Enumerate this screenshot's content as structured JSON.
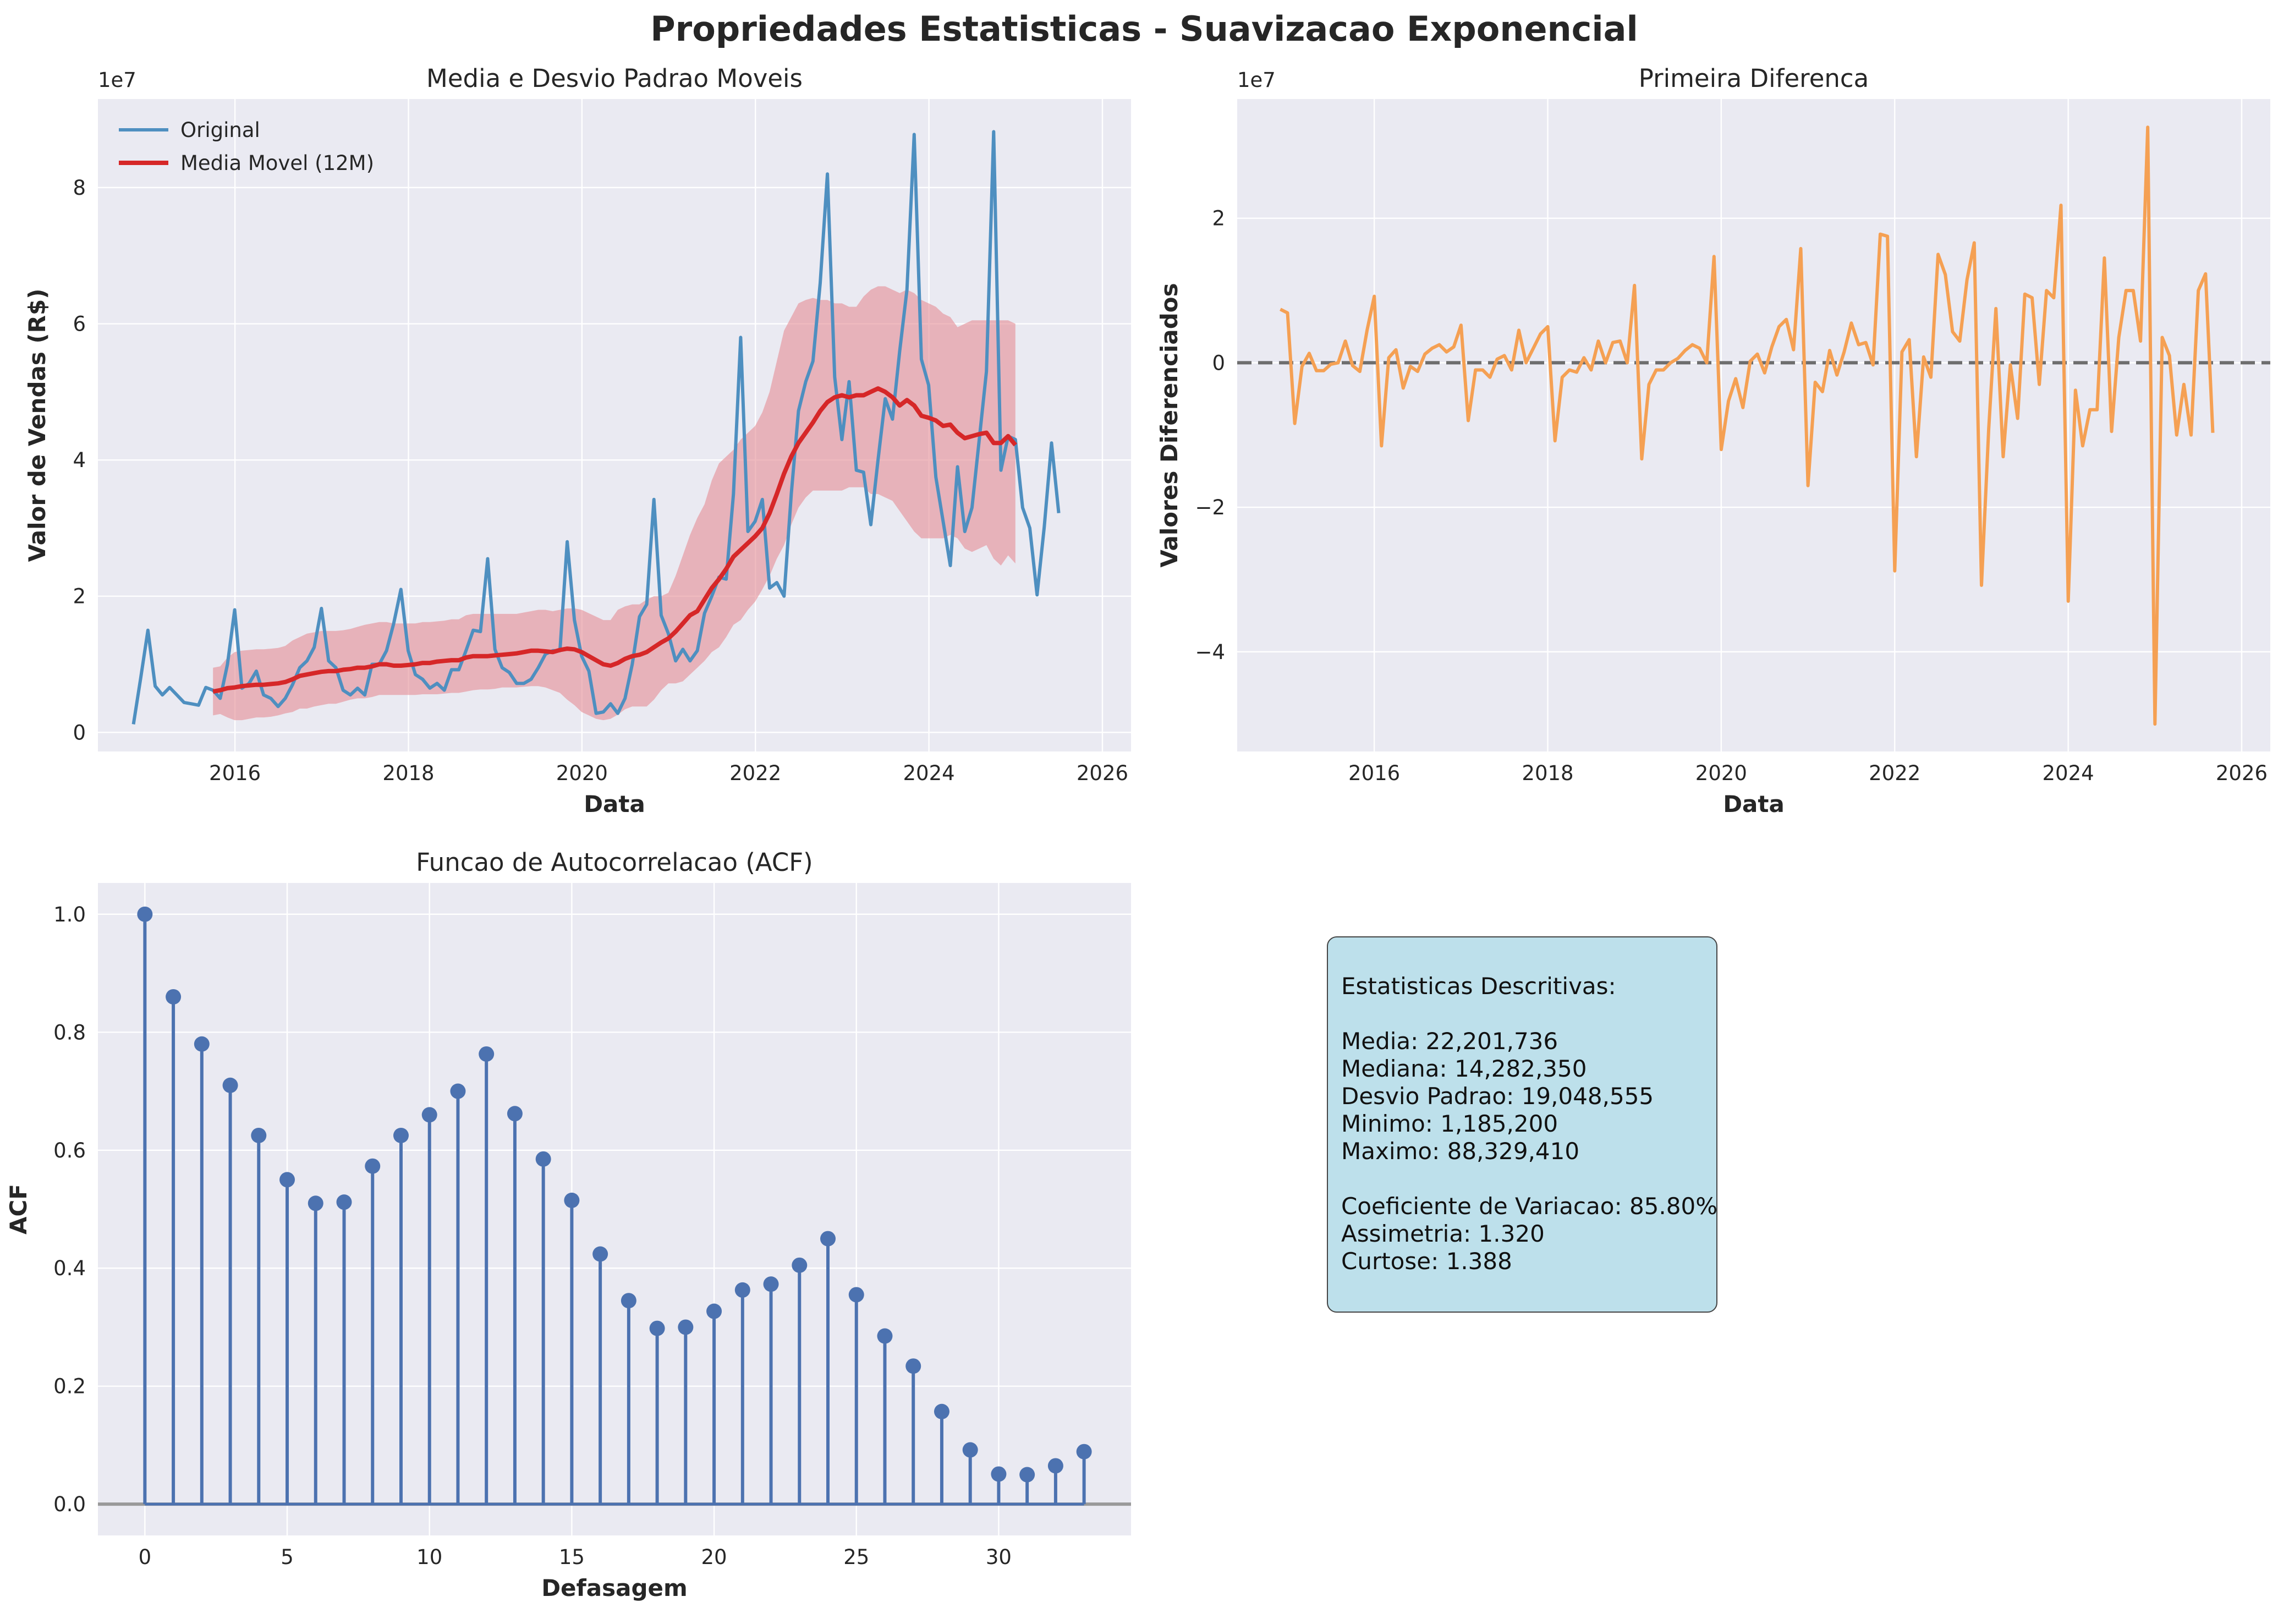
{
  "title": "Propriedades Estatisticas - Suavizacao Exponencial",
  "colors": {
    "axes_bg": "#eaeaf2",
    "original": "#4e8fc0",
    "rolling": "#d62728",
    "band": "#e48c94",
    "diff": "#f5a053",
    "acf": "#4c72b0",
    "zero": "#555555"
  },
  "chart_data": [
    {
      "type": "line",
      "title": "Media e Desvio Padrao Moveis",
      "xlabel": "Data",
      "ylabel": "Valor de Vendas (R$)",
      "y_offset_label": "1e7",
      "xlim": [
        2014.42,
        2026.33
      ],
      "ylim": [
        -0.28,
        9.3
      ],
      "xticks": [
        2016,
        2018,
        2020,
        2022,
        2024,
        2026
      ],
      "yticks": [
        0,
        2,
        4,
        6,
        8
      ],
      "x_start": 2014.83,
      "x_step_months": 1,
      "legend": {
        "position": "upper-left",
        "entries": [
          "Original",
          "Media Movel (12M)"
        ]
      },
      "series": [
        {
          "name": "Original",
          "values": [
            0.12,
            0.8,
            1.5,
            0.68,
            0.55,
            0.66,
            0.55,
            0.44,
            0.42,
            0.4,
            0.66,
            0.62,
            0.5,
            1.0,
            1.8,
            0.65,
            0.72,
            0.9,
            0.55,
            0.5,
            0.38,
            0.5,
            0.7,
            0.95,
            1.05,
            1.25,
            1.82,
            1.05,
            0.95,
            0.62,
            0.55,
            0.65,
            0.55,
            1.0,
            1.0,
            1.2,
            1.6,
            2.1,
            1.2,
            0.85,
            0.78,
            0.65,
            0.72,
            0.62,
            0.92,
            0.92,
            1.2,
            1.5,
            1.48,
            2.55,
            1.22,
            0.95,
            0.88,
            0.72,
            0.72,
            0.78,
            0.95,
            1.15,
            1.2,
            1.2,
            2.8,
            1.65,
            1.12,
            0.9,
            0.28,
            0.3,
            0.42,
            0.28,
            0.5,
            1.0,
            1.7,
            1.88,
            3.42,
            1.72,
            1.45,
            1.05,
            1.22,
            1.05,
            1.2,
            1.75,
            2.0,
            2.28,
            2.25,
            3.5,
            5.8,
            2.95,
            3.1,
            3.42,
            2.12,
            2.2,
            2.0,
            3.5,
            4.72,
            5.15,
            5.45,
            6.6,
            8.2,
            5.22,
            4.3,
            5.15,
            3.85,
            3.82,
            3.05,
            4.0,
            4.9,
            4.6,
            5.6,
            6.5,
            8.78,
            5.48,
            5.1,
            3.75,
            3.1,
            2.45,
            3.9,
            2.95,
            3.3,
            4.3,
            5.3,
            8.82,
            3.85,
            4.35,
            4.3,
            3.3,
            3.0,
            2.02,
            3.02,
            4.25,
            3.22
          ]
        },
        {
          "name": "Media Movel (12M)",
          "start_index": 11,
          "values": [
            0.6,
            0.62,
            0.65,
            0.66,
            0.68,
            0.69,
            0.7,
            0.7,
            0.71,
            0.72,
            0.74,
            0.78,
            0.83,
            0.85,
            0.87,
            0.89,
            0.9,
            0.9,
            0.92,
            0.93,
            0.95,
            0.95,
            0.97,
            1.0,
            1.0,
            0.98,
            0.98,
            0.99,
            1.0,
            1.02,
            1.02,
            1.04,
            1.05,
            1.06,
            1.06,
            1.1,
            1.12,
            1.12,
            1.12,
            1.13,
            1.14,
            1.15,
            1.16,
            1.18,
            1.2,
            1.2,
            1.19,
            1.18,
            1.21,
            1.23,
            1.22,
            1.18,
            1.12,
            1.06,
            1.0,
            0.98,
            1.02,
            1.08,
            1.12,
            1.14,
            1.18,
            1.25,
            1.32,
            1.38,
            1.48,
            1.6,
            1.72,
            1.78,
            1.95,
            2.12,
            2.25,
            2.4,
            2.58,
            2.68,
            2.78,
            2.88,
            3.0,
            3.22,
            3.5,
            3.8,
            4.05,
            4.25,
            4.4,
            4.55,
            4.72,
            4.85,
            4.92,
            4.95,
            4.92,
            4.95,
            4.95,
            5.0,
            5.05,
            5.0,
            4.92,
            4.8,
            4.88,
            4.8,
            4.65,
            4.62,
            4.58,
            4.5,
            4.52,
            4.4,
            4.32,
            4.35,
            4.38,
            4.4,
            4.25,
            4.25,
            4.35,
            4.22
          ]
        },
        {
          "name": "band_upper",
          "start_index": 11,
          "values": [
            0.95,
            0.97,
            1.1,
            1.18,
            1.2,
            1.21,
            1.22,
            1.22,
            1.23,
            1.24,
            1.27,
            1.35,
            1.4,
            1.45,
            1.47,
            1.49,
            1.49,
            1.49,
            1.5,
            1.52,
            1.55,
            1.58,
            1.6,
            1.62,
            1.62,
            1.6,
            1.6,
            1.6,
            1.6,
            1.62,
            1.62,
            1.63,
            1.64,
            1.66,
            1.66,
            1.72,
            1.74,
            1.74,
            1.74,
            1.74,
            1.74,
            1.74,
            1.74,
            1.76,
            1.78,
            1.8,
            1.8,
            1.78,
            1.8,
            1.82,
            1.82,
            1.8,
            1.75,
            1.7,
            1.65,
            1.65,
            1.8,
            1.85,
            1.88,
            1.88,
            1.95,
            2.0,
            2.0,
            2.05,
            2.3,
            2.6,
            2.9,
            3.15,
            3.35,
            3.7,
            3.95,
            4.05,
            4.15,
            4.3,
            4.4,
            4.5,
            4.7,
            5.0,
            5.45,
            5.9,
            6.1,
            6.3,
            6.35,
            6.38,
            6.35,
            6.35,
            6.3,
            6.3,
            6.25,
            6.25,
            6.4,
            6.5,
            6.55,
            6.55,
            6.5,
            6.45,
            6.5,
            6.45,
            6.35,
            6.3,
            6.25,
            6.15,
            6.1,
            5.95,
            6.0,
            6.05,
            6.05,
            6.05,
            6.05,
            6.05,
            6.05,
            6.0
          ]
        },
        {
          "name": "band_lower",
          "start_index": 11,
          "values": [
            0.25,
            0.27,
            0.22,
            0.18,
            0.18,
            0.2,
            0.22,
            0.22,
            0.23,
            0.25,
            0.28,
            0.3,
            0.35,
            0.35,
            0.38,
            0.4,
            0.42,
            0.42,
            0.45,
            0.48,
            0.5,
            0.5,
            0.52,
            0.55,
            0.55,
            0.55,
            0.55,
            0.55,
            0.55,
            0.56,
            0.56,
            0.56,
            0.57,
            0.58,
            0.58,
            0.6,
            0.62,
            0.63,
            0.63,
            0.64,
            0.66,
            0.66,
            0.66,
            0.67,
            0.68,
            0.68,
            0.66,
            0.62,
            0.58,
            0.48,
            0.4,
            0.3,
            0.25,
            0.2,
            0.18,
            0.2,
            0.26,
            0.34,
            0.38,
            0.38,
            0.38,
            0.48,
            0.62,
            0.72,
            0.72,
            0.75,
            0.85,
            0.95,
            1.05,
            1.18,
            1.25,
            1.4,
            1.58,
            1.65,
            1.8,
            1.92,
            2.1,
            2.3,
            2.55,
            2.75,
            3.05,
            3.3,
            3.45,
            3.55,
            3.55,
            3.55,
            3.55,
            3.55,
            3.6,
            3.6,
            3.6,
            3.5,
            3.5,
            3.45,
            3.4,
            3.25,
            3.1,
            2.95,
            2.85,
            2.85,
            2.85,
            2.85,
            2.9,
            2.85,
            2.7,
            2.65,
            2.7,
            2.75,
            2.55,
            2.45,
            2.6,
            2.48
          ]
        }
      ]
    },
    {
      "type": "line",
      "title": "Primeira Diferenca",
      "xlabel": "Data",
      "ylabel": "Valores Diferenciados",
      "y_offset_label": "1e7",
      "xlim": [
        2014.42,
        2026.33
      ],
      "ylim": [
        -5.38,
        3.65
      ],
      "xticks": [
        2016,
        2018,
        2020,
        2022,
        2024,
        2026
      ],
      "yticks": [
        -4,
        -2,
        0,
        2
      ],
      "x_start": 2014.917,
      "x_step_months": 1,
      "zero_line": true,
      "series": [
        {
          "name": "Diferenca",
          "values": [
            0.74,
            0.69,
            -0.84,
            -0.05,
            0.13,
            -0.11,
            -0.11,
            -0.02,
            0.0,
            0.3,
            -0.04,
            -0.12,
            0.45,
            0.92,
            -1.15,
            0.07,
            0.18,
            -0.35,
            -0.05,
            -0.12,
            0.12,
            0.2,
            0.25,
            0.15,
            0.22,
            0.52,
            -0.8,
            -0.1,
            -0.1,
            -0.2,
            0.05,
            0.1,
            -0.1,
            0.45,
            0.0,
            0.2,
            0.4,
            0.5,
            -1.08,
            -0.2,
            -0.1,
            -0.13,
            0.07,
            -0.1,
            0.3,
            0.0,
            0.28,
            0.3,
            0.0,
            1.07,
            -1.33,
            -0.3,
            -0.1,
            -0.1,
            0.0,
            0.06,
            0.17,
            0.25,
            0.2,
            0.0,
            1.47,
            -1.2,
            -0.53,
            -0.22,
            -0.62,
            0.02,
            0.12,
            -0.14,
            0.22,
            0.5,
            0.6,
            0.18,
            1.58,
            -1.7,
            -0.27,
            -0.4,
            0.17,
            -0.17,
            0.15,
            0.55,
            0.25,
            0.28,
            -0.03,
            1.78,
            1.75,
            -2.88,
            0.15,
            0.32,
            -1.3,
            0.08,
            -0.2,
            1.5,
            1.22,
            0.43,
            0.3,
            1.15,
            1.66,
            -3.08,
            -0.92,
            0.75,
            -1.3,
            -0.03,
            -0.77,
            0.95,
            0.9,
            -0.3,
            1.0,
            0.9,
            2.18,
            -3.3,
            -0.38,
            -1.15,
            -0.65,
            -0.65,
            1.45,
            -0.95,
            0.35,
            1.0,
            1.0,
            0.3,
            3.26,
            -5.0,
            0.35,
            0.1,
            -1.0,
            -0.3,
            -1.0,
            1.0,
            1.23,
            -0.97
          ]
        }
      ]
    },
    {
      "type": "scatter",
      "subtype": "stem",
      "title": "Funcao de Autocorrelacao (ACF)",
      "xlabel": "Defasagem",
      "ylabel": "ACF",
      "xlim": [
        -1.65,
        34.65
      ],
      "ylim": [
        -0.053,
        1.053
      ],
      "xticks": [
        0,
        5,
        10,
        15,
        20,
        25,
        30
      ],
      "yticks": [
        0.0,
        0.2,
        0.4,
        0.6,
        0.8,
        1.0
      ],
      "x": [
        0,
        1,
        2,
        3,
        4,
        5,
        6,
        7,
        8,
        9,
        10,
        11,
        12,
        13,
        14,
        15,
        16,
        17,
        18,
        19,
        20,
        21,
        22,
        23,
        24,
        25,
        26,
        27,
        28,
        29,
        30,
        31,
        32,
        33
      ],
      "values": [
        1.0,
        0.86,
        0.78,
        0.71,
        0.625,
        0.55,
        0.51,
        0.512,
        0.573,
        0.625,
        0.66,
        0.7,
        0.763,
        0.662,
        0.585,
        0.515,
        0.424,
        0.345,
        0.298,
        0.3,
        0.327,
        0.363,
        0.373,
        0.405,
        0.45,
        0.355,
        0.285,
        0.234,
        0.157,
        0.092,
        0.051,
        0.05,
        0.065,
        0.089
      ]
    }
  ],
  "stats_box": {
    "heading": "Estatisticas Descritivas:",
    "lines_1": [
      "Media: 22,201,736",
      "Mediana: 14,282,350",
      "Desvio Padrao: 19,048,555",
      "Minimo: 1,185,200",
      "Maximo: 88,329,410"
    ],
    "lines_2": [
      "Coeficiente de Variacao: 85.80%",
      "Assimetria: 1.320",
      "Curtose: 1.388"
    ]
  }
}
